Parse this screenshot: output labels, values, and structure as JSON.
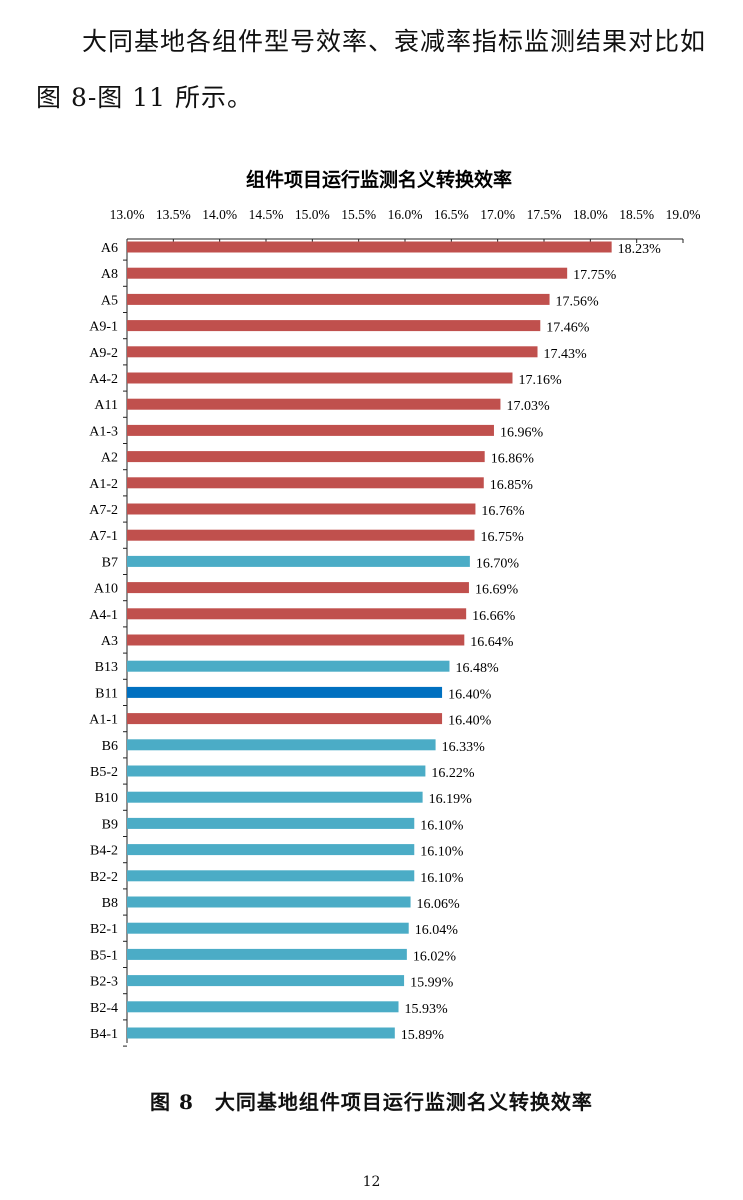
{
  "document": {
    "intro_text": "大同基地各组件型号效率、衰减率指标监测结果对比如图 8-图 11 所示。",
    "figure_caption": "图 8　大同基地组件项目运行监测名义转换效率",
    "page_number": "12"
  },
  "chart_data": {
    "type": "bar",
    "orientation": "horizontal",
    "title": "组件项目运行监测名义转换效率",
    "xlabel": "",
    "ylabel": "",
    "x_axis_position": "top",
    "xlim": [
      13.0,
      19.0
    ],
    "x_ticks": [
      13.0,
      13.5,
      14.0,
      14.5,
      15.0,
      15.5,
      16.0,
      16.5,
      17.0,
      17.5,
      18.0,
      18.5,
      19.0
    ],
    "x_tick_labels": [
      "13.0%",
      "13.5%",
      "14.0%",
      "14.5%",
      "15.0%",
      "15.5%",
      "16.0%",
      "16.5%",
      "17.0%",
      "17.5%",
      "18.0%",
      "18.5%",
      "19.0%"
    ],
    "grid": false,
    "legend": "none",
    "colors": {
      "A": "#c0504d",
      "B": "#4bacc6",
      "highlight": "#0070c0"
    },
    "categories": [
      "A6",
      "A8",
      "A5",
      "A9-1",
      "A9-2",
      "A4-2",
      "A11",
      "A1-3",
      "A2",
      "A1-2",
      "A7-2",
      "A7-1",
      "B7",
      "A10",
      "A4-1",
      "A3",
      "B13",
      "B11",
      "A1-1",
      "B6",
      "B5-2",
      "B10",
      "B9",
      "B4-2",
      "B2-2",
      "B8",
      "B2-1",
      "B5-1",
      "B2-3",
      "B2-4",
      "B4-1"
    ],
    "values": [
      18.23,
      17.75,
      17.56,
      17.46,
      17.43,
      17.16,
      17.03,
      16.96,
      16.86,
      16.85,
      16.76,
      16.75,
      16.7,
      16.69,
      16.66,
      16.64,
      16.48,
      16.4,
      16.4,
      16.33,
      16.22,
      16.19,
      16.1,
      16.1,
      16.1,
      16.06,
      16.04,
      16.02,
      15.99,
      15.93,
      15.89
    ],
    "value_labels": [
      "18.23%",
      "17.75%",
      "17.56%",
      "17.46%",
      "17.43%",
      "17.16%",
      "17.03%",
      "16.96%",
      "16.86%",
      "16.85%",
      "16.76%",
      "16.75%",
      "16.70%",
      "16.69%",
      "16.66%",
      "16.64%",
      "16.48%",
      "16.40%",
      "16.40%",
      "16.33%",
      "16.22%",
      "16.19%",
      "16.10%",
      "16.10%",
      "16.10%",
      "16.06%",
      "16.04%",
      "16.02%",
      "15.99%",
      "15.93%",
      "15.89%"
    ],
    "bar_colors": [
      "#c0504d",
      "#c0504d",
      "#c0504d",
      "#c0504d",
      "#c0504d",
      "#c0504d",
      "#c0504d",
      "#c0504d",
      "#c0504d",
      "#c0504d",
      "#c0504d",
      "#c0504d",
      "#4bacc6",
      "#c0504d",
      "#c0504d",
      "#c0504d",
      "#4bacc6",
      "#0070c0",
      "#c0504d",
      "#4bacc6",
      "#4bacc6",
      "#4bacc6",
      "#4bacc6",
      "#4bacc6",
      "#4bacc6",
      "#4bacc6",
      "#4bacc6",
      "#4bacc6",
      "#4bacc6",
      "#4bacc6",
      "#4bacc6"
    ]
  }
}
